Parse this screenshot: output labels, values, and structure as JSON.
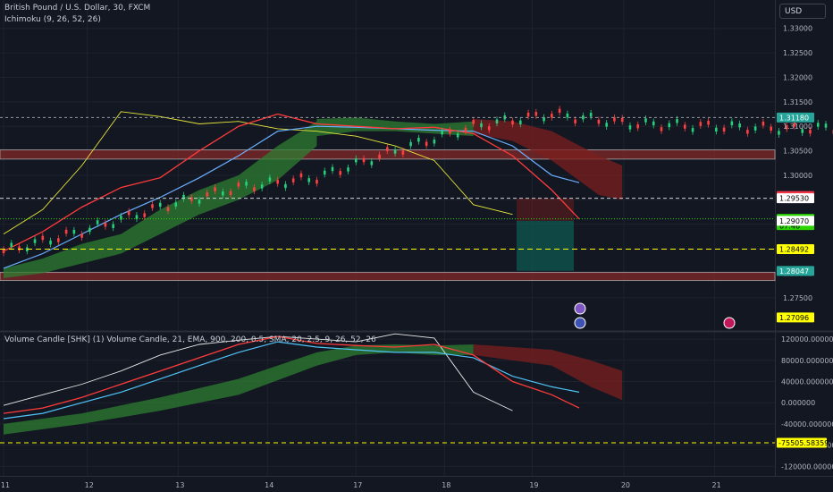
{
  "header": {
    "symbol_line": "British Pound / U.S. Dollar, 30, FXCM",
    "indicator_line": "Ichimoku (9, 26, 52, 26)",
    "lower_indicator_line": "Volume Candle [SHK] (1) Volume Candle, 21, EMA, 900, 200, 0.5, SMA, 20, 2.5, 9, 26, 52, 26"
  },
  "currency_button": "USD",
  "colors": {
    "background": "#131722",
    "up_candle": "#26a69a",
    "down_candle": "#ef5350",
    "tenkan": "#ff3b3b",
    "kijun": "#6ab0ff",
    "chikou": "#e8e83a",
    "kumo_bull": "#2e7d32",
    "kumo_bear": "#7b1f1f",
    "resistance_zone": "#8b2a2a",
    "support_dashed": "#ffff00",
    "target_box": "#0d5c53"
  },
  "chart_data": [
    {
      "type": "line",
      "panel": "main",
      "title": "British Pound / U.S. Dollar, 30, FXCM",
      "y_ticks": [
        "1.33000",
        "1.32500",
        "1.32000",
        "1.31500",
        "1.31000",
        "1.30500",
        "1.30000",
        "1.29500",
        "1.29000",
        "1.28500",
        "1.28000",
        "1.27500"
      ],
      "ylim": [
        1.2682,
        1.3358
      ],
      "x_ticks": [
        "11",
        "12",
        "13",
        "14",
        "17",
        "18",
        "19",
        "20",
        "21"
      ],
      "x": [
        0,
        0.5,
        1,
        1.5,
        2,
        2.5,
        3,
        3.5,
        4,
        4.5,
        5,
        5.5,
        6,
        6.5,
        7,
        7.35
      ],
      "series": [
        {
          "name": "",
          "role": "price",
          "values": [
            1.2845,
            1.2885,
            1.2935,
            1.2975,
            1.2995,
            1.305,
            1.31,
            1.3125,
            1.3105,
            1.31,
            1.3095,
            1.3098,
            1.3085,
            1.304,
            1.297,
            1.2911
          ]
        },
        {
          "name": "",
          "role": "kijun",
          "values": [
            1.281,
            1.284,
            1.288,
            1.292,
            1.2955,
            1.2995,
            1.304,
            1.309,
            1.31,
            1.3098,
            1.3095,
            1.3092,
            1.309,
            1.306,
            1.3,
            1.2985
          ]
        },
        {
          "name": "",
          "role": "chikou",
          "values": [
            1.288,
            1.293,
            1.302,
            1.313,
            1.312,
            1.3105,
            1.311,
            1.3095,
            1.309,
            1.308,
            1.306,
            1.303,
            1.294,
            1.292,
            null,
            null
          ]
        }
      ],
      "markers": [
        {
          "label": "1.31180",
          "value": 1.3118,
          "color": "#26a69a"
        },
        {
          "label": "1.29577",
          "value": 1.29577,
          "color": "#f23645"
        },
        {
          "label": "1.29530",
          "value": 1.2953,
          "color": "#ffffff"
        },
        {
          "label": "1.29110",
          "sub": "07:46",
          "value": 1.2911,
          "color": "#2bd600"
        },
        {
          "label": "1.29070",
          "value": 1.2907,
          "color": "#ffffff"
        },
        {
          "label": "1.28492",
          "value": 1.28492,
          "color": "#ffff00"
        },
        {
          "label": "1.28047",
          "value": 1.28047,
          "color": "#26a69a"
        },
        {
          "label": "1.27096",
          "value": 1.27096,
          "color": "#ffff00"
        }
      ],
      "zones": [
        {
          "from": 1.3033,
          "to": 1.3052,
          "color": "#8b2a2a"
        },
        {
          "from": 1.2785,
          "to": 1.2802,
          "color": "#8b2a2a"
        }
      ]
    },
    {
      "type": "line",
      "panel": "lower",
      "title": "Volume Candle [SHK] (1) Volume Candle, 21, EMA, 900, 200, 0.5, SMA, 20, 2.5, 9, 26, 52, 26",
      "y_ticks": [
        "120000.000000",
        "80000.000000",
        "40000.000000",
        "0.000000",
        "-40000.000000",
        "-80000.000000",
        "-120000.000000"
      ],
      "ylim": [
        -138000,
        132000
      ],
      "x": [
        0,
        0.5,
        1,
        1.5,
        2,
        2.5,
        3,
        3.5,
        4,
        4.5,
        5,
        5.5,
        6,
        6.5,
        7,
        7.35
      ],
      "series": [
        {
          "name": "",
          "role": "price",
          "values": [
            -20000,
            -10000,
            10000,
            35000,
            60000,
            85000,
            110000,
            125000,
            112000,
            108000,
            105000,
            110000,
            90000,
            40000,
            15000,
            -10000
          ]
        },
        {
          "name": "",
          "role": "kijun",
          "values": [
            -30000,
            -20000,
            0,
            20000,
            45000,
            70000,
            95000,
            115000,
            105000,
            100000,
            95000,
            95000,
            85000,
            50000,
            30000,
            20000
          ]
        },
        {
          "name": "",
          "role": "oscillator",
          "values": [
            -5000,
            15000,
            35000,
            60000,
            90000,
            110000,
            118000,
            125000,
            120000,
            115000,
            130000,
            122000,
            20000,
            -15000,
            null,
            null
          ]
        }
      ],
      "markers": [
        {
          "label": "-75505.58359",
          "value": -75505.58359,
          "color": "#ffff00"
        }
      ]
    }
  ]
}
